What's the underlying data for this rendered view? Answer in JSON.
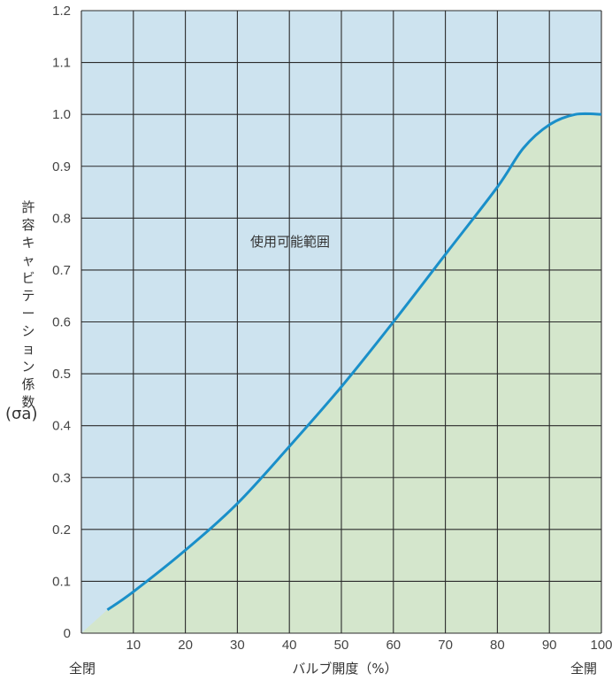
{
  "chart_data": {
    "type": "area",
    "x": [
      5,
      10,
      20,
      30,
      40,
      50,
      60,
      70,
      80,
      85,
      90,
      95,
      100
    ],
    "y": [
      0.045,
      0.08,
      0.16,
      0.25,
      0.36,
      0.475,
      0.6,
      0.73,
      0.86,
      0.935,
      0.98,
      1.0,
      1.0
    ],
    "xlim": [
      0,
      100
    ],
    "ylim": [
      0,
      1.2
    ],
    "x_ticks": [
      "10",
      "20",
      "30",
      "40",
      "50",
      "60",
      "70",
      "80",
      "90",
      "100"
    ],
    "y_ticks": [
      "0",
      "0.1",
      "0.2",
      "0.3",
      "0.4",
      "0.5",
      "0.6",
      "0.7",
      "0.8",
      "0.9",
      "1.0",
      "1.1",
      "1.2"
    ],
    "xlabel": "バルブ開度（%）",
    "x_start_label": "全閉",
    "x_end_label": "全開",
    "ylabel_text": "許容キャビテーション係数",
    "ylabel_symbol": "(σa)",
    "region_label": "使用可能範囲",
    "grid": true,
    "colors": {
      "upper_fill": "#cde3ef",
      "lower_fill": "#d4e6cc",
      "curve": "#1a8fc9",
      "grid": "#2b2b2b"
    }
  }
}
